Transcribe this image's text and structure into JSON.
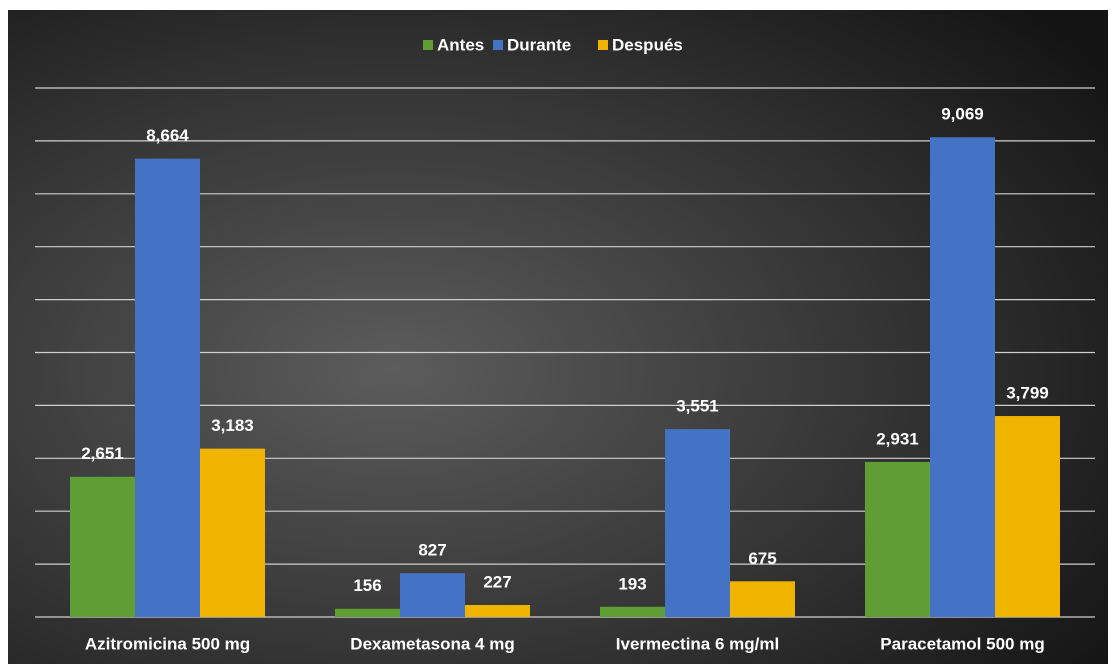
{
  "chart_data": {
    "type": "bar",
    "categories": [
      "Azitromicina 500 mg",
      "Dexametasona 4 mg",
      "Ivermectina 6 mg/ml",
      "Paracetamol 500 mg"
    ],
    "series": [
      {
        "name": "Antes",
        "color": "#5e9e34",
        "values": [
          2651,
          156,
          193,
          2931
        ],
        "value_labels": [
          "2,651",
          "156",
          "193",
          "2,931"
        ]
      },
      {
        "name": "Durante",
        "color": "#4472c4",
        "values": [
          8664,
          827,
          3551,
          9069
        ],
        "value_labels": [
          "8,664",
          "827",
          "3,551",
          "9,069"
        ]
      },
      {
        "name": "Después",
        "color": "#f0b400",
        "values": [
          3183,
          227,
          675,
          3799
        ],
        "value_labels": [
          "3,183",
          "227",
          "675",
          "3,799"
        ]
      }
    ],
    "ylim": [
      0,
      10000
    ],
    "yticks": [
      0,
      1000,
      2000,
      3000,
      4000,
      5000,
      6000,
      7000,
      8000,
      9000,
      10000
    ],
    "grid": true,
    "legend": "top"
  }
}
